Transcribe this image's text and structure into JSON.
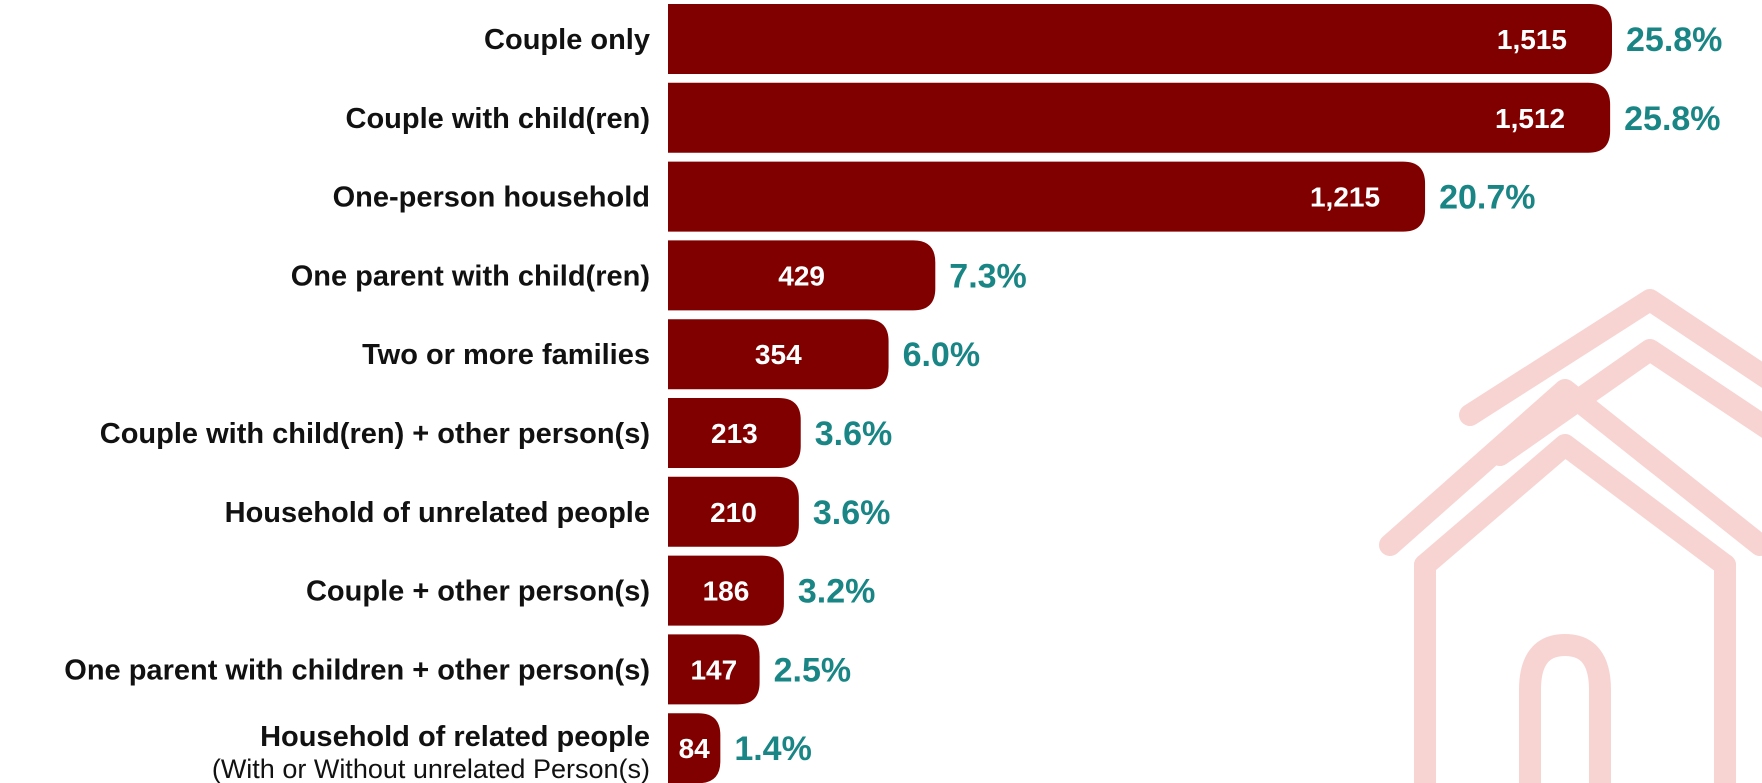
{
  "chart_data": {
    "type": "bar",
    "orientation": "horizontal",
    "categories": [
      "Couple only",
      "Couple with child(ren)",
      "One-person household",
      "One parent with child(ren)",
      "Two or more families",
      "Couple with child(ren) + other person(s)",
      "Household of unrelated people",
      "Couple + other person(s)",
      "One parent with children + other person(s)",
      "Household of related people"
    ],
    "category_sublabels": [
      "",
      "",
      "",
      "",
      "",
      "",
      "",
      "",
      "",
      "(With or Without unrelated Person(s)"
    ],
    "values": [
      1515,
      1512,
      1215,
      429,
      354,
      213,
      210,
      186,
      147,
      84
    ],
    "value_labels": [
      "1,515",
      "1,512",
      "1,215",
      "429",
      "354",
      "213",
      "210",
      "186",
      "147",
      "84"
    ],
    "percent_labels": [
      "25.8%",
      "25.8%",
      "20.7%",
      "7.3%",
      "6.0%",
      "3.6%",
      "3.6%",
      "3.2%",
      "2.5%",
      "1.4%"
    ],
    "xlim": [
      0,
      1515
    ],
    "grid": false,
    "title": "",
    "xlabel": "",
    "ylabel": ""
  },
  "colors": {
    "bar": "#800000",
    "value_text": "#ffffff",
    "percent_text": "#1a8585",
    "category_text": "#111111",
    "house_outline": "#f7d4d2"
  },
  "decoration": {
    "icon": "house-outline-icon"
  }
}
